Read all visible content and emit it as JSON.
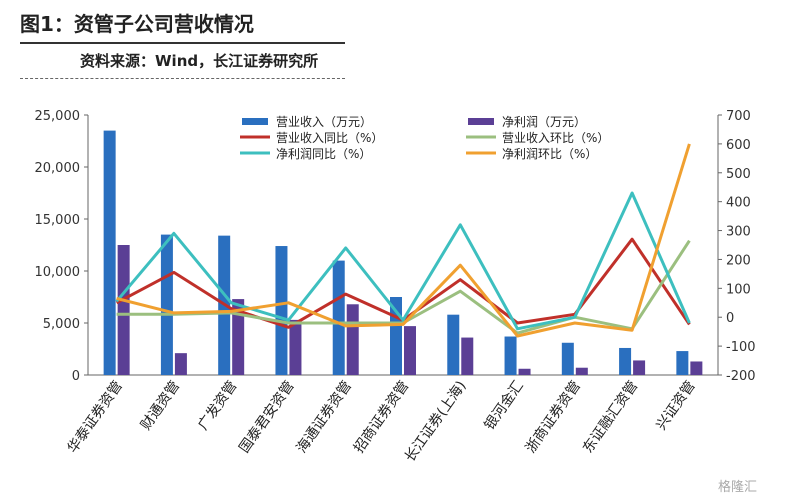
{
  "figure": {
    "title": "图1：资管子公司营收情况",
    "source": "资料来源：Wind，长江证券研究所"
  },
  "watermark": "格隆汇",
  "chart_data": {
    "type": "bar",
    "categories": [
      "华泰证券资管",
      "财通资管",
      "广发资管",
      "国泰君安资管",
      "海通证券资管",
      "招商证券资管",
      "长江证券(上海)",
      "银河金汇",
      "浙商证券资管",
      "东证融汇资管",
      "兴证资管"
    ],
    "y_left": {
      "ylim": [
        0,
        25000
      ],
      "ticks": [
        "0",
        "5,000",
        "10,000",
        "15,000",
        "20,000",
        "25,000"
      ]
    },
    "y_right": {
      "ylim": [
        -200,
        700
      ],
      "ticks": [
        "-200",
        "-100",
        "0",
        "100",
        "200",
        "300",
        "400",
        "500",
        "600",
        "700"
      ]
    },
    "colors": {
      "revenue": "#2a6fbf",
      "net_profit": "#5b3f95",
      "revenue_yoy": "#c0302a",
      "revenue_qoq": "#9bbf7f",
      "profit_yoy": "#3dbfbf",
      "profit_qoq": "#f0a030"
    },
    "series": [
      {
        "name": "营业收入（万元）",
        "kind": "bar",
        "axis": "left",
        "key": "revenue",
        "values": [
          23500,
          13500,
          13400,
          12400,
          11000,
          7500,
          5800,
          3700,
          3100,
          2600,
          2300
        ]
      },
      {
        "name": "净利润（万元）",
        "kind": "bar",
        "axis": "left",
        "key": "net_profit",
        "values": [
          12500,
          2100,
          7300,
          5300,
          6800,
          4700,
          3600,
          600,
          700,
          1400,
          1300
        ]
      },
      {
        "name": "营业收入同比（%）",
        "kind": "line",
        "axis": "right",
        "key": "revenue_yoy",
        "values": [
          50,
          155,
          30,
          -35,
          80,
          -10,
          130,
          -20,
          10,
          270,
          -25
        ]
      },
      {
        "name": "营业收入环比（%）",
        "kind": "line",
        "axis": "right",
        "key": "revenue_qoq",
        "values": [
          10,
          10,
          15,
          -20,
          -20,
          -20,
          90,
          -55,
          0,
          -40,
          265
        ]
      },
      {
        "name": "净利润同比（%）",
        "kind": "line",
        "axis": "right",
        "key": "profit_yoy",
        "values": [
          55,
          290,
          50,
          -10,
          240,
          -10,
          320,
          -40,
          0,
          430,
          -20
        ]
      },
      {
        "name": "净利润环比（%）",
        "kind": "line",
        "axis": "right",
        "key": "profit_qoq",
        "values": [
          65,
          15,
          20,
          50,
          -30,
          -25,
          180,
          -65,
          -20,
          -45,
          600
        ]
      }
    ],
    "legend_position": "top"
  }
}
